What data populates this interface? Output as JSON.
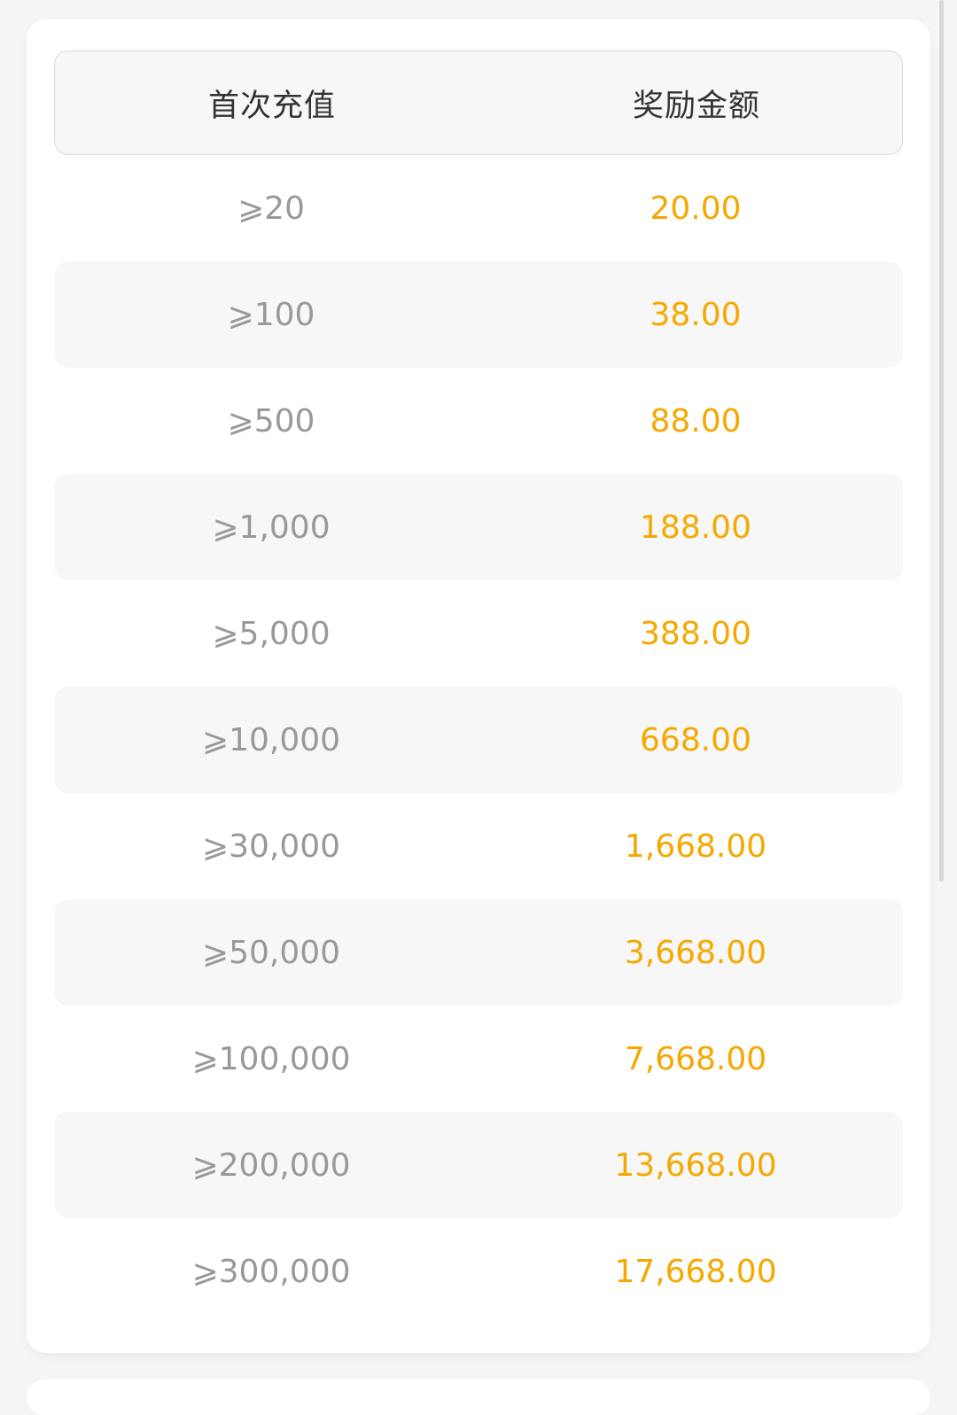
{
  "table": {
    "headers": [
      "首次充值",
      "奖励金额"
    ],
    "rows": [
      {
        "deposit": "⩾20",
        "bonus": "20.00"
      },
      {
        "deposit": "⩾100",
        "bonus": "38.00"
      },
      {
        "deposit": "⩾500",
        "bonus": "88.00"
      },
      {
        "deposit": "⩾1,000",
        "bonus": "188.00"
      },
      {
        "deposit": "⩾5,000",
        "bonus": "388.00"
      },
      {
        "deposit": "⩾10,000",
        "bonus": "668.00"
      },
      {
        "deposit": "⩾30,000",
        "bonus": "1,668.00"
      },
      {
        "deposit": "⩾50,000",
        "bonus": "3,668.00"
      },
      {
        "deposit": "⩾100,000",
        "bonus": "7,668.00"
      },
      {
        "deposit": "⩾200,000",
        "bonus": "13,668.00"
      },
      {
        "deposit": "⩾300,000",
        "bonus": "17,668.00"
      }
    ]
  },
  "colors": {
    "bonus": "#f5a800",
    "deposit": "#999999",
    "header_bg": "#f7f7f7"
  }
}
